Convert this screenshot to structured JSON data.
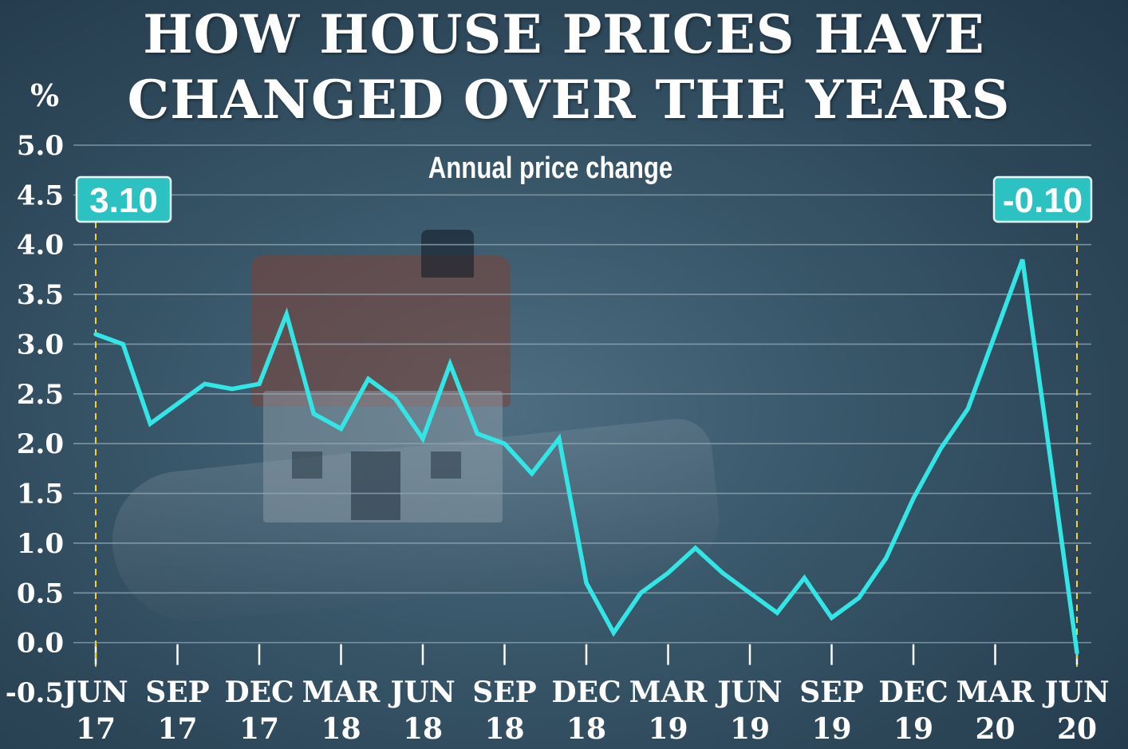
{
  "header": {
    "title_line1": "HOW HOUSE PRICES HAVE",
    "title_line2": "CHANGED OVER THE YEARS",
    "subtitle": "Annual price change"
  },
  "colors": {
    "line": "#33e6e6",
    "callout_fill": "#2cc2c2",
    "callout_border": "#e8f7f7",
    "guide": "#f0d530",
    "grid": "#8fa5b2"
  },
  "chart_data": {
    "type": "line",
    "title": "HOW HOUSE PRICES HAVE CHANGED OVER THE YEARS",
    "subtitle": "Annual price change",
    "ylabel": "%",
    "ylim": [
      -0.5,
      5.0
    ],
    "yticks": [
      5.0,
      4.5,
      4.0,
      3.5,
      3.0,
      2.5,
      2.0,
      1.5,
      1.0,
      0.5,
      0.0,
      -0.5
    ],
    "ytick_labels": [
      "5.0",
      "4.5",
      "4.0",
      "3.5",
      "3.0",
      "2.5",
      "2.0",
      "1.5",
      "1.0",
      "0.5",
      "0.0",
      "-0.5"
    ],
    "xticks": [
      {
        "label": [
          "JUN",
          "17"
        ],
        "month_index": 0
      },
      {
        "label": [
          "SEP",
          "17"
        ],
        "month_index": 3
      },
      {
        "label": [
          "DEC",
          "17"
        ],
        "month_index": 6
      },
      {
        "label": [
          "MAR",
          "18"
        ],
        "month_index": 9
      },
      {
        "label": [
          "JUN",
          "18"
        ],
        "month_index": 12
      },
      {
        "label": [
          "SEP",
          "18"
        ],
        "month_index": 15
      },
      {
        "label": [
          "DEC",
          "18"
        ],
        "month_index": 18
      },
      {
        "label": [
          "MAR",
          "19"
        ],
        "month_index": 21
      },
      {
        "label": [
          "JUN",
          "19"
        ],
        "month_index": 24
      },
      {
        "label": [
          "SEP",
          "19"
        ],
        "month_index": 27
      },
      {
        "label": [
          "DEC",
          "19"
        ],
        "month_index": 30
      },
      {
        "label": [
          "MAR",
          "20"
        ],
        "month_index": 33
      },
      {
        "label": [
          "JUN",
          "20"
        ],
        "month_index": 36
      }
    ],
    "grid": true,
    "series": [
      {
        "values": [
          3.1,
          3.0,
          2.2,
          2.4,
          2.6,
          2.55,
          2.6,
          3.3,
          2.3,
          2.15,
          2.65,
          2.45,
          2.05,
          2.8,
          2.1,
          2.0,
          1.7,
          2.05,
          0.6,
          0.1,
          0.5,
          0.7,
          0.95,
          0.7,
          0.5,
          0.3,
          0.65,
          0.25,
          0.45,
          0.85,
          1.45,
          1.95,
          2.35,
          3.1,
          3.85,
          1.9,
          -0.1
        ]
      }
    ],
    "callouts": [
      {
        "text": "3.10",
        "month_index": 0
      },
      {
        "text": "-0.10",
        "month_index": 36
      }
    ]
  }
}
